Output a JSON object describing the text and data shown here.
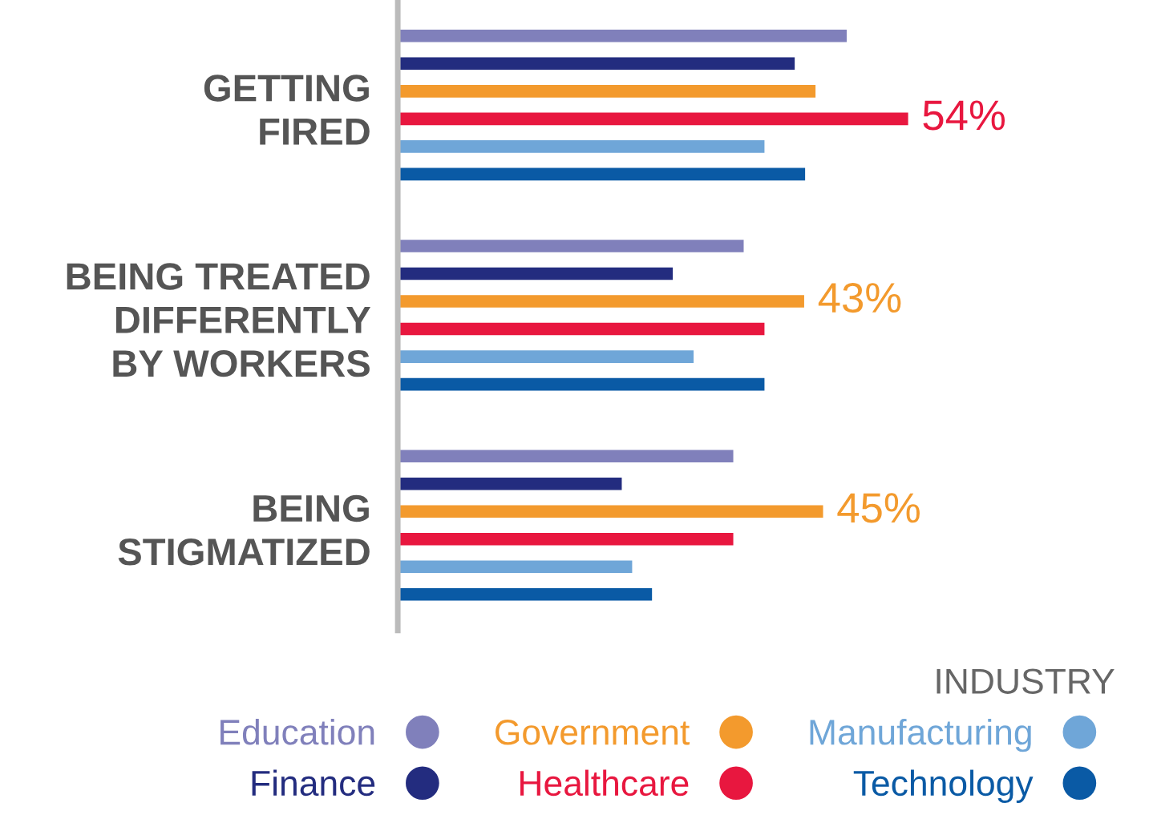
{
  "chart_data": {
    "type": "bar",
    "orientation": "horizontal",
    "categories": [
      "GETTING\nFIRED",
      "BEING TREATED\nDIFFERENTLY\nBY WORKERS",
      "BEING\nSTIGMATIZED"
    ],
    "legend_title": "INDUSTRY",
    "legend": "bottom",
    "series": [
      {
        "name": "Education",
        "color": "#8080bb",
        "values": [
          47.5,
          36.6,
          35.5
        ],
        "value_labels": [
          null,
          null,
          null
        ]
      },
      {
        "name": "Finance",
        "color": "#232c7f",
        "values": [
          42,
          29.1,
          23.7
        ],
        "value_labels": [
          null,
          null,
          null
        ]
      },
      {
        "name": "Government",
        "color": "#f39a2d",
        "values": [
          44.2,
          43,
          45
        ],
        "value_labels": [
          null,
          "43%",
          "45%"
        ]
      },
      {
        "name": "Healthcare",
        "color": "#e8173f",
        "values": [
          54,
          38.8,
          35.5
        ],
        "value_labels": [
          "54%",
          null,
          null
        ]
      },
      {
        "name": "Manufacturing",
        "color": "#6fa6d8",
        "values": [
          38.8,
          31.3,
          24.8
        ],
        "value_labels": [
          null,
          null,
          null
        ]
      },
      {
        "name": "Technology",
        "color": "#0a5aa5",
        "values": [
          43.1,
          38.8,
          26.9
        ],
        "value_labels": [
          null,
          null,
          null
        ]
      }
    ]
  }
}
